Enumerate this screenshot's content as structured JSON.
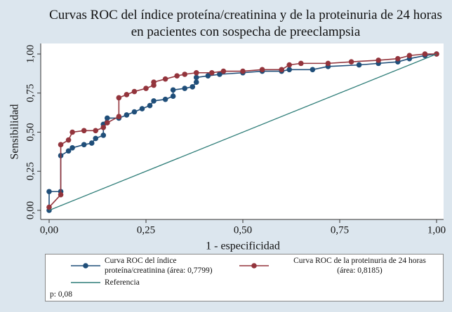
{
  "chart_data": {
    "type": "line",
    "title": "Curvas ROC del índice proteína/creatinina y de la proteinuria de 24 horas en pacientes con sospecha de preeclampsia",
    "x_label": "1 - especificidad",
    "y_label": "Sensibilidad",
    "xlim": [
      0,
      1
    ],
    "ylim": [
      0,
      1
    ],
    "xticks": [
      {
        "value": 0,
        "label": "0,00"
      },
      {
        "value": 0.25,
        "label": "0,25"
      },
      {
        "value": 0.5,
        "label": "0,50"
      },
      {
        "value": 0.75,
        "label": "0,75"
      },
      {
        "value": 1,
        "label": "1,00"
      }
    ],
    "yticks": [
      {
        "value": 0,
        "label": "0,00"
      },
      {
        "value": 0.25,
        "label": "0,25"
      },
      {
        "value": 0.5,
        "label": "0,50"
      },
      {
        "value": 0.75,
        "label": "0,75"
      },
      {
        "value": 1,
        "label": "1,00"
      }
    ],
    "grid": false,
    "series": [
      {
        "name": "Curva ROC del índice proteína/creatinina (área: 0,7799)",
        "color": "#1f4e79",
        "markers": true,
        "x": [
          0,
          0,
          0.03,
          0.03,
          0.05,
          0.06,
          0.09,
          0.11,
          0.12,
          0.14,
          0.14,
          0.15,
          0.18,
          0.2,
          0.22,
          0.24,
          0.26,
          0.27,
          0.3,
          0.32,
          0.32,
          0.35,
          0.37,
          0.38,
          0.38,
          0.41,
          0.44,
          0.5,
          0.55,
          0.6,
          0.62,
          0.68,
          0.72,
          0.8,
          0.85,
          0.9,
          0.93,
          0.97,
          1
        ],
        "values": [
          0,
          0.12,
          0.12,
          0.35,
          0.38,
          0.4,
          0.42,
          0.43,
          0.46,
          0.48,
          0.55,
          0.59,
          0.59,
          0.61,
          0.63,
          0.65,
          0.67,
          0.7,
          0.71,
          0.73,
          0.77,
          0.78,
          0.79,
          0.82,
          0.85,
          0.86,
          0.87,
          0.88,
          0.89,
          0.89,
          0.9,
          0.9,
          0.92,
          0.93,
          0.94,
          0.95,
          0.97,
          0.99,
          1
        ]
      },
      {
        "name": "Curva ROC de la proteinuria de 24 horas (área: 0,8185)",
        "color": "#93343c",
        "markers": true,
        "x": [
          0,
          0.03,
          0.03,
          0.05,
          0.06,
          0.09,
          0.12,
          0.14,
          0.15,
          0.18,
          0.18,
          0.2,
          0.22,
          0.25,
          0.27,
          0.27,
          0.3,
          0.33,
          0.35,
          0.38,
          0.42,
          0.45,
          0.5,
          0.55,
          0.6,
          0.62,
          0.65,
          0.72,
          0.78,
          0.85,
          0.9,
          0.93,
          0.97,
          1
        ],
        "values": [
          0.02,
          0.1,
          0.42,
          0.45,
          0.5,
          0.51,
          0.51,
          0.53,
          0.56,
          0.6,
          0.72,
          0.74,
          0.76,
          0.78,
          0.8,
          0.82,
          0.84,
          0.86,
          0.87,
          0.88,
          0.88,
          0.89,
          0.89,
          0.9,
          0.9,
          0.93,
          0.94,
          0.94,
          0.95,
          0.96,
          0.97,
          0.99,
          1,
          1
        ]
      },
      {
        "name": "Referencia",
        "color": "#2e7d78",
        "markers": false,
        "x": [
          0,
          1
        ],
        "values": [
          0,
          1
        ]
      }
    ],
    "annotation": "p: 0,08"
  }
}
